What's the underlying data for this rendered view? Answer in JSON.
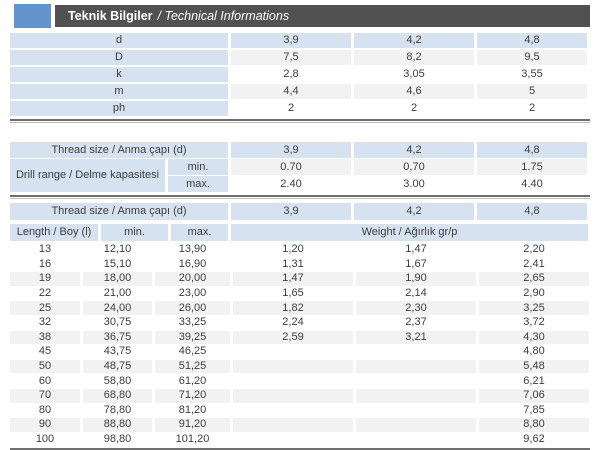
{
  "header": {
    "title_tr": "Teknik Bilgiler",
    "title_en": "/ Technical Informations"
  },
  "colors": {
    "accent_blue": "#6593ce",
    "title_bar_gray": "#515151",
    "cell_blue": "#d6e2f0",
    "stripe_gray": "#f2f2f2",
    "text": "#3d3d3d",
    "rule_dark": "#6f6f6f",
    "rule_light": "#bdbdb3"
  },
  "spec_table": {
    "rows": [
      {
        "label": "d",
        "values": [
          "3,9",
          "4,2",
          "4,8"
        ],
        "style": "header"
      },
      {
        "label": "D",
        "values": [
          "7,5",
          "8,2",
          "9,5"
        ],
        "style": "stripe"
      },
      {
        "label": "k",
        "values": [
          "2,8",
          "3,05",
          "3,55"
        ],
        "style": "plain"
      },
      {
        "label": "m",
        "values": [
          "4,4",
          "4,6",
          "5"
        ],
        "style": "stripe"
      },
      {
        "label": "ph",
        "values": [
          "2",
          "2",
          "2"
        ],
        "style": "plain"
      }
    ]
  },
  "drill_table": {
    "thread_label": "Thread size / Anma çapı (d)",
    "thread_values": [
      "3,9",
      "4,2",
      "4,8"
    ],
    "range_label": "Drill range / Delme kapasitesi",
    "min_label": "min.",
    "max_label": "max.",
    "min_values": [
      "0.70",
      "0,70",
      "1.75"
    ],
    "max_values": [
      "2.40",
      "3.00",
      "4.40"
    ]
  },
  "length_table": {
    "thread_label": "Thread size / Anma çapı (d)",
    "thread_values": [
      "3,9",
      "4,2",
      "4,8"
    ],
    "length_header": "Length / Boy (l)",
    "min_header": "min.",
    "max_header": "max.",
    "weight_header": "Weight / Ağırlık gr/p",
    "rows": [
      {
        "length": "13",
        "min": "12,10",
        "max": "13,90",
        "weights": [
          "1,20",
          "1,47",
          "2,20"
        ]
      },
      {
        "length": "16",
        "min": "15,10",
        "max": "16,90",
        "weights": [
          "1,31",
          "1,67",
          "2,41"
        ]
      },
      {
        "length": "19",
        "min": "18,00",
        "max": "20,00",
        "weights": [
          "1,47",
          "1,90",
          "2,65"
        ]
      },
      {
        "length": "22",
        "min": "21,00",
        "max": "23,00",
        "weights": [
          "1,65",
          "2,14",
          "2,90"
        ]
      },
      {
        "length": "25",
        "min": "24,00",
        "max": "26,00",
        "weights": [
          "1,82",
          "2,30",
          "3,25"
        ]
      },
      {
        "length": "32",
        "min": "30,75",
        "max": "33,25",
        "weights": [
          "2,24",
          "2,37",
          "3,72"
        ]
      },
      {
        "length": "38",
        "min": "36,75",
        "max": "39,25",
        "weights": [
          "2,59",
          "3,21",
          "4,30"
        ]
      },
      {
        "length": "45",
        "min": "43,75",
        "max": "46,25",
        "weights": [
          "",
          "",
          "4,80"
        ]
      },
      {
        "length": "50",
        "min": "48,75",
        "max": "51,25",
        "weights": [
          "",
          "",
          "5,48"
        ]
      },
      {
        "length": "60",
        "min": "58,80",
        "max": "61,20",
        "weights": [
          "",
          "",
          "6,21"
        ]
      },
      {
        "length": "70",
        "min": "68,80",
        "max": "71,20",
        "weights": [
          "",
          "",
          "7,06"
        ]
      },
      {
        "length": "80",
        "min": "78,80",
        "max": "81,20",
        "weights": [
          "",
          "",
          "7,85"
        ]
      },
      {
        "length": "90",
        "min": "88,80",
        "max": "91,20",
        "weights": [
          "",
          "",
          "8,80"
        ]
      },
      {
        "length": "100",
        "min": "98,80",
        "max": "101,20",
        "weights": [
          "",
          "",
          "9,62"
        ]
      }
    ]
  }
}
